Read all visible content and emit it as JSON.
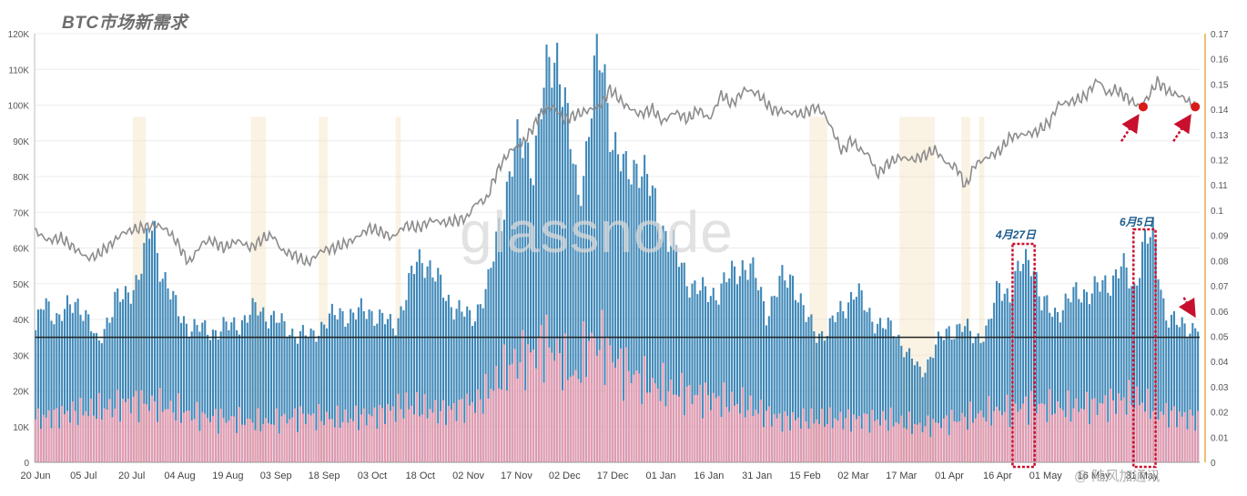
{
  "chart_data": {
    "type": "bar",
    "title": "BTC市场新需求",
    "watermark": "glassnode",
    "source_mark": "@ 陆风加通讯",
    "x_tick_labels": [
      "20 Jun",
      "05 Jul",
      "20 Jul",
      "04 Aug",
      "19 Aug",
      "03 Sep",
      "18 Sep",
      "03 Oct",
      "18 Oct",
      "02 Nov",
      "17 Nov",
      "02 Dec",
      "17 Dec",
      "01 Jan",
      "16 Jan",
      "31 Jan",
      "15 Feb",
      "02 Mar",
      "17 Mar",
      "01 Apr",
      "16 Apr",
      "01 May",
      "16 May",
      "31 May"
    ],
    "left_axis": {
      "min": 0,
      "max": 120000,
      "ticks": [
        "0",
        "10K",
        "20K",
        "30K",
        "40K",
        "50K",
        "60K",
        "70K",
        "80K",
        "90K",
        "100K",
        "110K",
        "120K"
      ]
    },
    "right_axis": {
      "min": 0,
      "max": 0.17,
      "ticks": [
        "0",
        "0.01",
        "0.02",
        "0.03",
        "0.04",
        "0.05",
        "0.06",
        "0.07",
        "0.08",
        "0.09",
        "0.1",
        "0.11",
        "0.12",
        "0.13",
        "0.14",
        "0.15",
        "0.16",
        "0.17"
      ]
    },
    "grid": true,
    "colors": {
      "blue_bar": "#3f88b8",
      "pink_bar": "#e89aae",
      "ratio_line": "#8c8c8c",
      "highlight_band": "#f3e3c0",
      "reference_line": "#222222",
      "right_axis": "#e7a84c",
      "annotation": "#c8102e"
    },
    "series": [
      {
        "name": "",
        "axis": "left",
        "color": "#3f88b8",
        "keypoints": [
          [
            0,
            37000
          ],
          [
            6,
            42000
          ],
          [
            10,
            44000
          ],
          [
            15,
            43000
          ],
          [
            20,
            42000
          ],
          [
            25,
            41000
          ],
          [
            30,
            42000
          ],
          [
            40,
            43000
          ],
          [
            50,
            45000
          ],
          [
            60,
            40000
          ],
          [
            70,
            32000
          ],
          [
            78,
            38000
          ],
          [
            90,
            46000
          ],
          [
            100,
            45000
          ],
          [
            115,
            52000
          ],
          [
            125,
            60000
          ],
          [
            133,
            67000
          ],
          [
            138,
            58000
          ],
          [
            148,
            50000
          ],
          [
            160,
            42000
          ],
          [
            175,
            38000
          ],
          [
            190,
            37000
          ],
          [
            205,
            37000
          ],
          [
            220,
            38000
          ],
          [
            235,
            40000
          ],
          [
            250,
            43000
          ],
          [
            265,
            41000
          ],
          [
            280,
            38000
          ],
          [
            295,
            36000
          ],
          [
            310,
            35000
          ],
          [
            325,
            39000
          ],
          [
            345,
            42000
          ],
          [
            360,
            41000
          ],
          [
            375,
            43000
          ],
          [
            390,
            40000
          ],
          [
            405,
            38000
          ],
          [
            420,
            48000
          ],
          [
            430,
            56000
          ],
          [
            438,
            58000
          ],
          [
            450,
            52000
          ],
          [
            465,
            46000
          ],
          [
            480,
            42000
          ],
          [
            492,
            40000
          ],
          [
            500,
            44000
          ],
          [
            512,
            50000
          ],
          [
            520,
            62000
          ],
          [
            530,
            75000
          ],
          [
            540,
            86000
          ],
          [
            552,
            90000
          ],
          [
            562,
            84000
          ],
          [
            572,
            100000
          ],
          [
            580,
            112000
          ],
          [
            590,
            116000
          ],
          [
            600,
            95000
          ],
          [
            612,
            74000
          ],
          [
            622,
            88000
          ],
          [
            632,
            110000
          ],
          [
            640,
            112000
          ],
          [
            652,
            90000
          ],
          [
            665,
            80000
          ],
          [
            680,
            85000
          ],
          [
            695,
            75000
          ],
          [
            710,
            65000
          ],
          [
            725,
            57000
          ],
          [
            740,
            50000
          ],
          [
            755,
            47000
          ],
          [
            770,
            48000
          ],
          [
            785,
            52000
          ],
          [
            800,
            56000
          ],
          [
            812,
            52000
          ],
          [
            825,
            42000
          ],
          [
            840,
            50000
          ],
          [
            855,
            52000
          ],
          [
            870,
            40000
          ],
          [
            882,
            36000
          ],
          [
            895,
            37000
          ],
          [
            910,
            43000
          ],
          [
            925,
            48000
          ],
          [
            940,
            42000
          ],
          [
            955,
            38000
          ],
          [
            970,
            37000
          ],
          [
            985,
            30000
          ],
          [
            1000,
            25000
          ],
          [
            1015,
            32000
          ],
          [
            1030,
            37000
          ],
          [
            1045,
            38000
          ],
          [
            1060,
            35000
          ],
          [
            1075,
            37000
          ],
          [
            1088,
            50000
          ],
          [
            1100,
            47000
          ],
          [
            1115,
            56000
          ],
          [
            1125,
            58000
          ],
          [
            1135,
            44000
          ],
          [
            1150,
            42000
          ],
          [
            1165,
            45000
          ],
          [
            1180,
            48000
          ],
          [
            1195,
            48000
          ],
          [
            1210,
            50000
          ],
          [
            1225,
            55000
          ],
          [
            1240,
            48000
          ],
          [
            1250,
            62000
          ],
          [
            1262,
            63000
          ],
          [
            1275,
            42000
          ],
          [
            1290,
            38000
          ],
          [
            1305,
            38000
          ],
          [
            1315,
            39000
          ]
        ]
      },
      {
        "name": "",
        "axis": "left",
        "color": "#e89aae",
        "keypoints": [
          [
            0,
            12000
          ],
          [
            40,
            14000
          ],
          [
            80,
            15000
          ],
          [
            110,
            17000
          ],
          [
            140,
            16000
          ],
          [
            180,
            13000
          ],
          [
            220,
            12000
          ],
          [
            260,
            11000
          ],
          [
            300,
            13000
          ],
          [
            340,
            12000
          ],
          [
            380,
            13000
          ],
          [
            420,
            16000
          ],
          [
            460,
            14000
          ],
          [
            500,
            17000
          ],
          [
            540,
            28000
          ],
          [
            560,
            30000
          ],
          [
            575,
            34000
          ],
          [
            590,
            30000
          ],
          [
            610,
            23000
          ],
          [
            625,
            34000
          ],
          [
            640,
            33000
          ],
          [
            660,
            27000
          ],
          [
            690,
            22000
          ],
          [
            720,
            20000
          ],
          [
            760,
            18000
          ],
          [
            800,
            16000
          ],
          [
            840,
            12000
          ],
          [
            880,
            12000
          ],
          [
            920,
            12000
          ],
          [
            960,
            12000
          ],
          [
            1000,
            10000
          ],
          [
            1040,
            12000
          ],
          [
            1080,
            14000
          ],
          [
            1120,
            16000
          ],
          [
            1160,
            15000
          ],
          [
            1200,
            16000
          ],
          [
            1240,
            18000
          ],
          [
            1270,
            14000
          ],
          [
            1310,
            12000
          ]
        ]
      },
      {
        "name": "",
        "axis": "right",
        "color": "#8c8c8c",
        "keypoints": [
          [
            0,
            0.092
          ],
          [
            15,
            0.088
          ],
          [
            30,
            0.089
          ],
          [
            45,
            0.085
          ],
          [
            60,
            0.081
          ],
          [
            70,
            0.082
          ],
          [
            85,
            0.086
          ],
          [
            100,
            0.091
          ],
          [
            120,
            0.093
          ],
          [
            140,
            0.094
          ],
          [
            150,
            0.092
          ],
          [
            160,
            0.088
          ],
          [
            175,
            0.079
          ],
          [
            190,
            0.087
          ],
          [
            200,
            0.088
          ],
          [
            215,
            0.085
          ],
          [
            230,
            0.088
          ],
          [
            245,
            0.085
          ],
          [
            260,
            0.089
          ],
          [
            270,
            0.09
          ],
          [
            280,
            0.084
          ],
          [
            295,
            0.082
          ],
          [
            310,
            0.079
          ],
          [
            325,
            0.084
          ],
          [
            340,
            0.085
          ],
          [
            360,
            0.088
          ],
          [
            380,
            0.093
          ],
          [
            395,
            0.091
          ],
          [
            405,
            0.089
          ],
          [
            420,
            0.094
          ],
          [
            435,
            0.093
          ],
          [
            450,
            0.096
          ],
          [
            465,
            0.095
          ],
          [
            480,
            0.096
          ],
          [
            490,
            0.097
          ],
          [
            500,
            0.103
          ],
          [
            512,
            0.104
          ],
          [
            520,
            0.112
          ],
          [
            528,
            0.118
          ],
          [
            540,
            0.124
          ],
          [
            552,
            0.126
          ],
          [
            565,
            0.133
          ],
          [
            575,
            0.139
          ],
          [
            588,
            0.141
          ],
          [
            600,
            0.136
          ],
          [
            615,
            0.138
          ],
          [
            630,
            0.14
          ],
          [
            640,
            0.141
          ],
          [
            652,
            0.148
          ],
          [
            668,
            0.142
          ],
          [
            685,
            0.138
          ],
          [
            700,
            0.14
          ],
          [
            712,
            0.135
          ],
          [
            725,
            0.139
          ],
          [
            740,
            0.136
          ],
          [
            752,
            0.14
          ],
          [
            765,
            0.136
          ],
          [
            778,
            0.146
          ],
          [
            790,
            0.142
          ],
          [
            805,
            0.148
          ],
          [
            820,
            0.146
          ],
          [
            835,
            0.14
          ],
          [
            850,
            0.139
          ],
          [
            870,
            0.138
          ],
          [
            885,
            0.141
          ],
          [
            895,
            0.138
          ],
          [
            905,
            0.131
          ],
          [
            915,
            0.123
          ],
          [
            925,
            0.128
          ],
          [
            935,
            0.124
          ],
          [
            945,
            0.122
          ],
          [
            955,
            0.114
          ],
          [
            965,
            0.118
          ],
          [
            980,
            0.121
          ],
          [
            995,
            0.12
          ],
          [
            1010,
            0.122
          ],
          [
            1020,
            0.124
          ],
          [
            1035,
            0.118
          ],
          [
            1045,
            0.117
          ],
          [
            1055,
            0.109
          ],
          [
            1065,
            0.118
          ],
          [
            1080,
            0.121
          ],
          [
            1095,
            0.124
          ],
          [
            1105,
            0.129
          ],
          [
            1120,
            0.13
          ],
          [
            1135,
            0.131
          ],
          [
            1150,
            0.135
          ],
          [
            1160,
            0.142
          ],
          [
            1175,
            0.143
          ],
          [
            1190,
            0.145
          ],
          [
            1205,
            0.152
          ],
          [
            1215,
            0.146
          ],
          [
            1225,
            0.148
          ],
          [
            1240,
            0.144
          ],
          [
            1252,
            0.141
          ],
          [
            1262,
            0.145
          ],
          [
            1272,
            0.151
          ],
          [
            1285,
            0.147
          ],
          [
            1300,
            0.145
          ],
          [
            1315,
            0.141
          ]
        ]
      }
    ],
    "reference_line": {
      "axis": "left",
      "value": 35000
    },
    "highlight_bands": [
      [
        111,
        126
      ],
      [
        245,
        262
      ],
      [
        322,
        332
      ],
      [
        409,
        415
      ],
      [
        878,
        898
      ],
      [
        980,
        1020
      ],
      [
        1050,
        1060
      ],
      [
        1070,
        1076
      ]
    ],
    "annotations": [
      {
        "label": "4月27日",
        "box_range": [
          1108,
          1133
        ]
      },
      {
        "label": "6月5日",
        "box_range": [
          1245,
          1270
        ]
      }
    ],
    "markers": [
      {
        "x": 1256,
        "value": 0.141
      },
      {
        "x": 1315,
        "value": 0.141
      }
    ]
  }
}
